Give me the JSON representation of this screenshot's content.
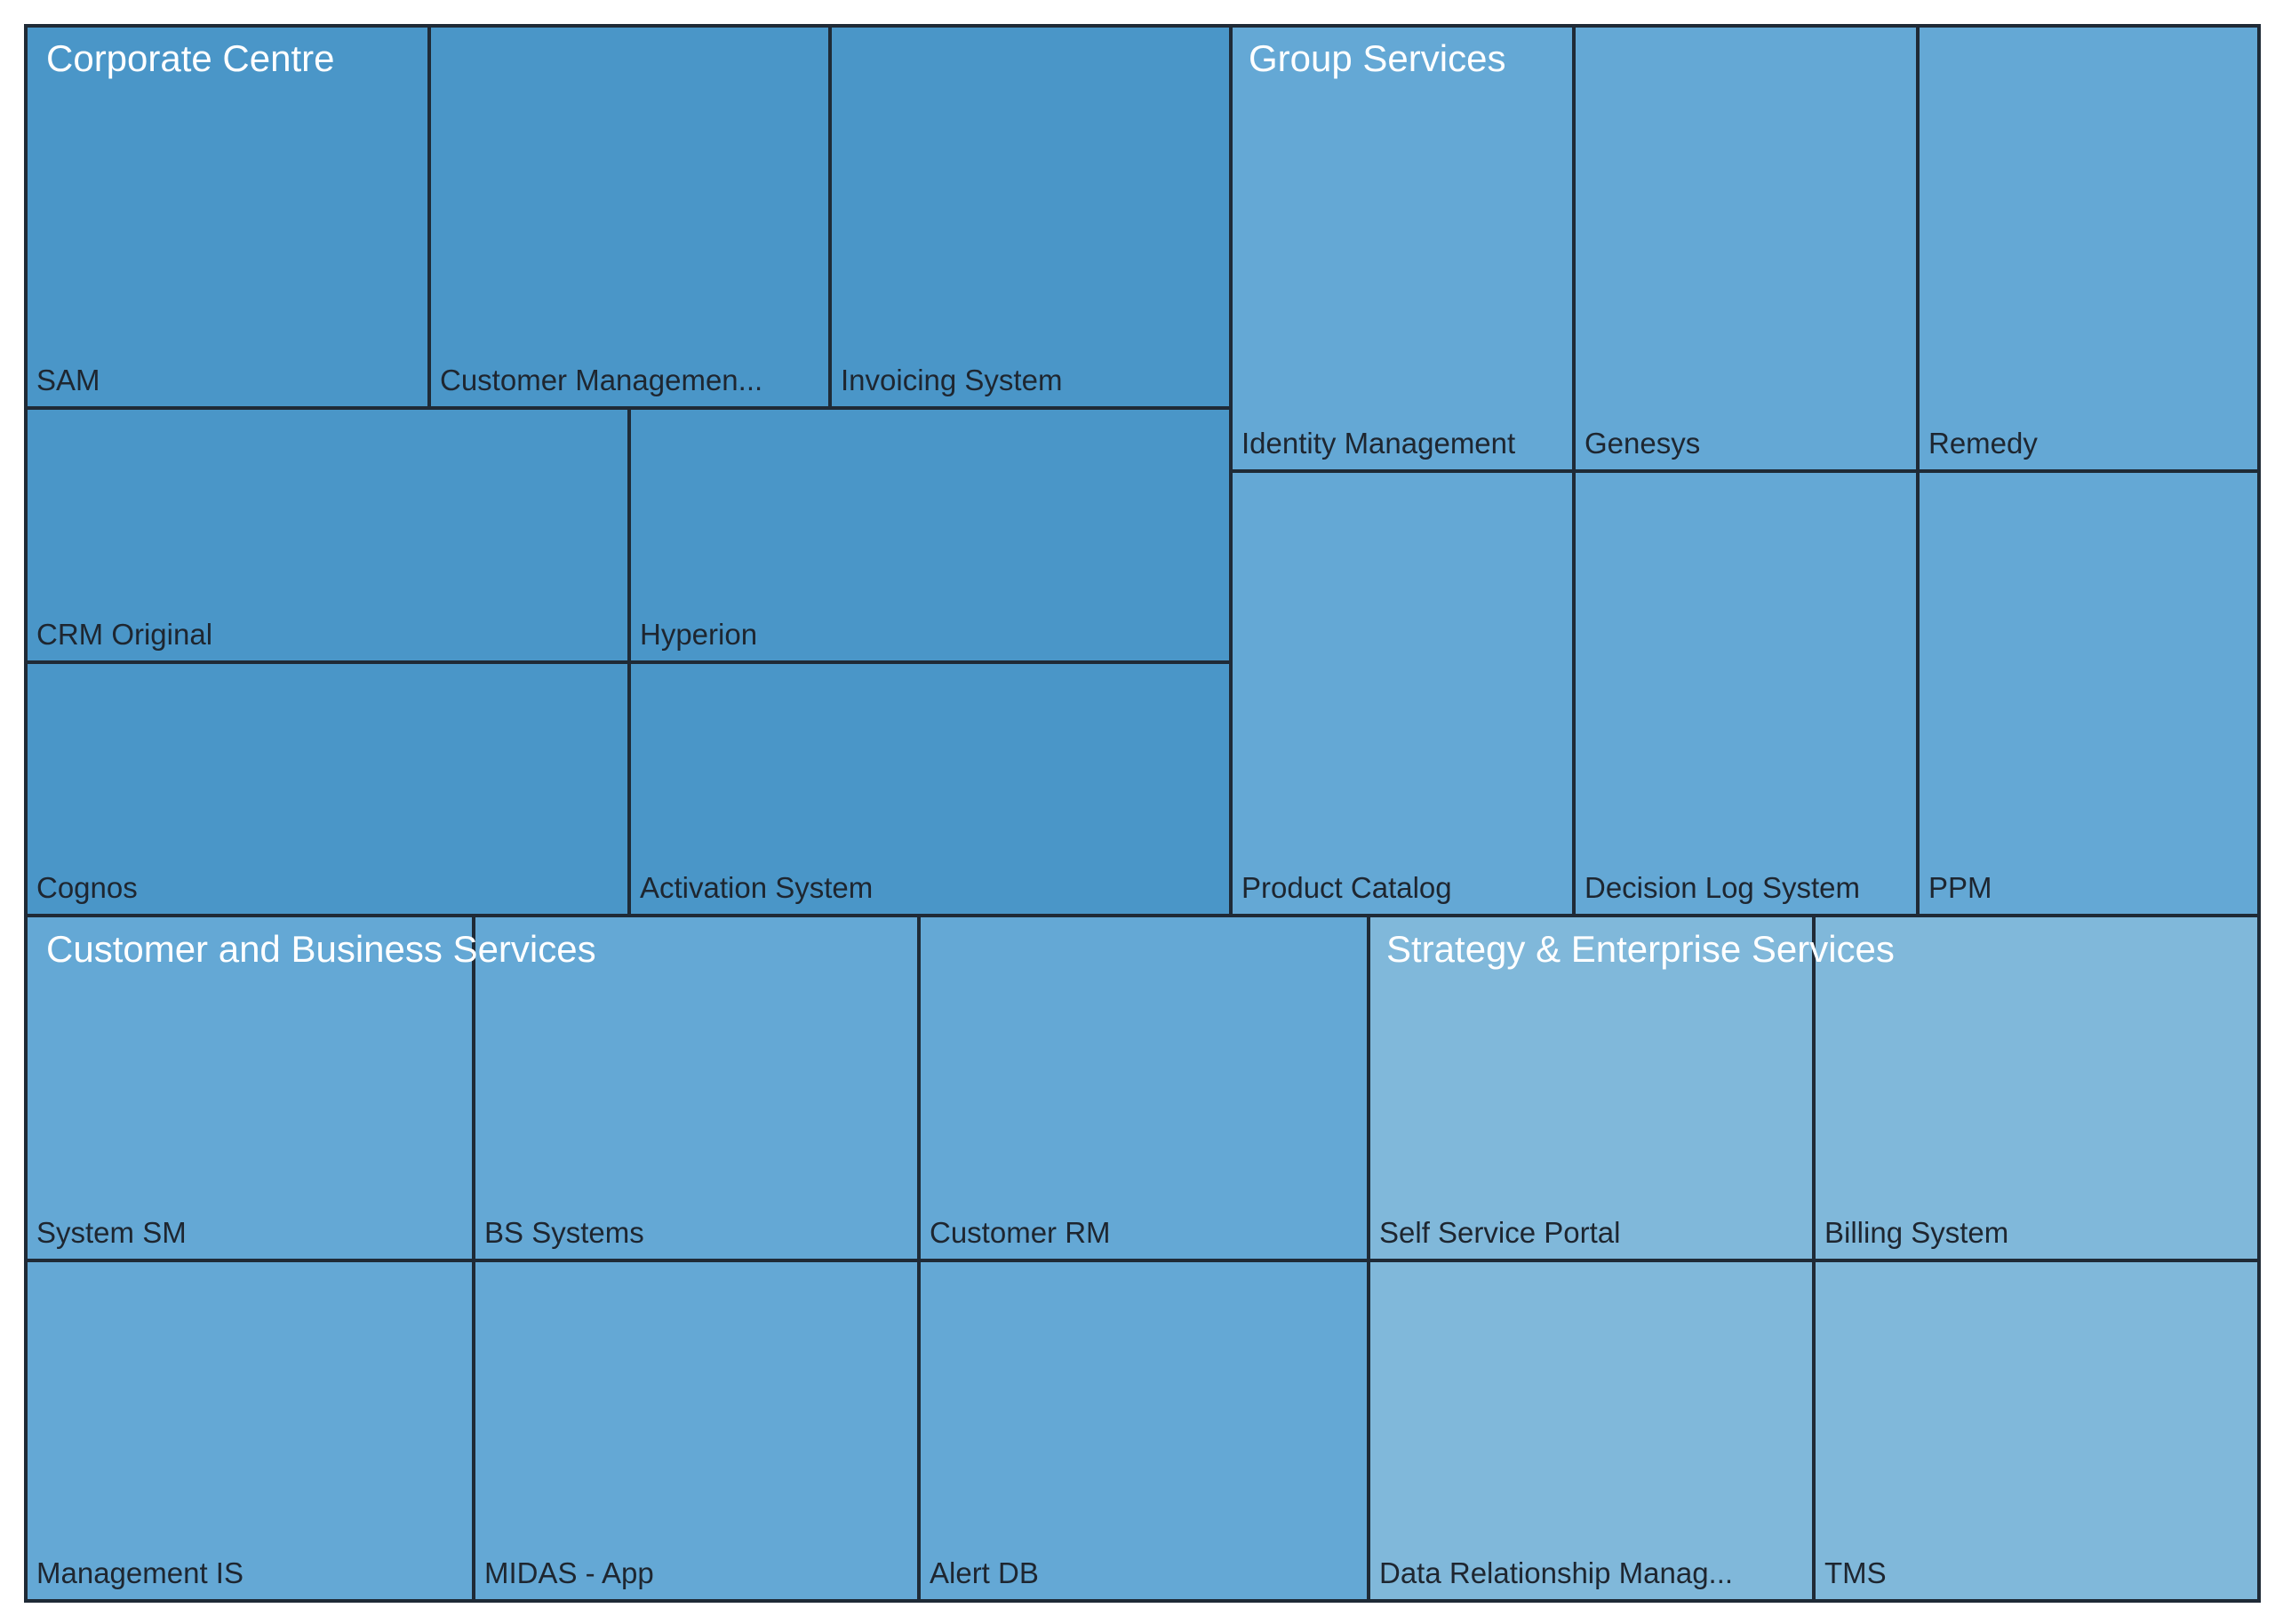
{
  "chart_data": {
    "type": "treemap",
    "groups": [
      {
        "name": "Corporate Centre",
        "color": "#4a96c8",
        "items": [
          {
            "label": "SAM",
            "value": 1
          },
          {
            "label": "Customer Managemen...",
            "value": 1
          },
          {
            "label": "Invoicing System",
            "value": 1
          },
          {
            "label": "CRM Original",
            "value": 1
          },
          {
            "label": "Hyperion",
            "value": 1
          },
          {
            "label": "Cognos",
            "value": 1
          },
          {
            "label": "Activation System",
            "value": 1
          }
        ]
      },
      {
        "name": "Group Services",
        "color": "#64a8d5",
        "items": [
          {
            "label": "Identity Management",
            "value": 1
          },
          {
            "label": "Genesys",
            "value": 1
          },
          {
            "label": "Remedy",
            "value": 1
          },
          {
            "label": "Product Catalog",
            "value": 1
          },
          {
            "label": "Decision Log System",
            "value": 1
          },
          {
            "label": "PPM",
            "value": 1
          }
        ]
      },
      {
        "name": "Customer and Business Services",
        "color": "#64a8d5",
        "items": [
          {
            "label": "System SM",
            "value": 1
          },
          {
            "label": "BS Systems",
            "value": 1
          },
          {
            "label": "Customer RM",
            "value": 1
          },
          {
            "label": "Management IS",
            "value": 1
          },
          {
            "label": "MIDAS - App",
            "value": 1
          },
          {
            "label": "Alert DB",
            "value": 1
          }
        ]
      },
      {
        "name": "Strategy & Enterprise Services",
        "color": "#80b8da",
        "items": [
          {
            "label": "Self Service Portal",
            "value": 1
          },
          {
            "label": "Billing System",
            "value": 1
          },
          {
            "label": "Data Relationship Manag...",
            "value": 1
          },
          {
            "label": "TMS",
            "value": 1
          }
        ]
      }
    ]
  }
}
